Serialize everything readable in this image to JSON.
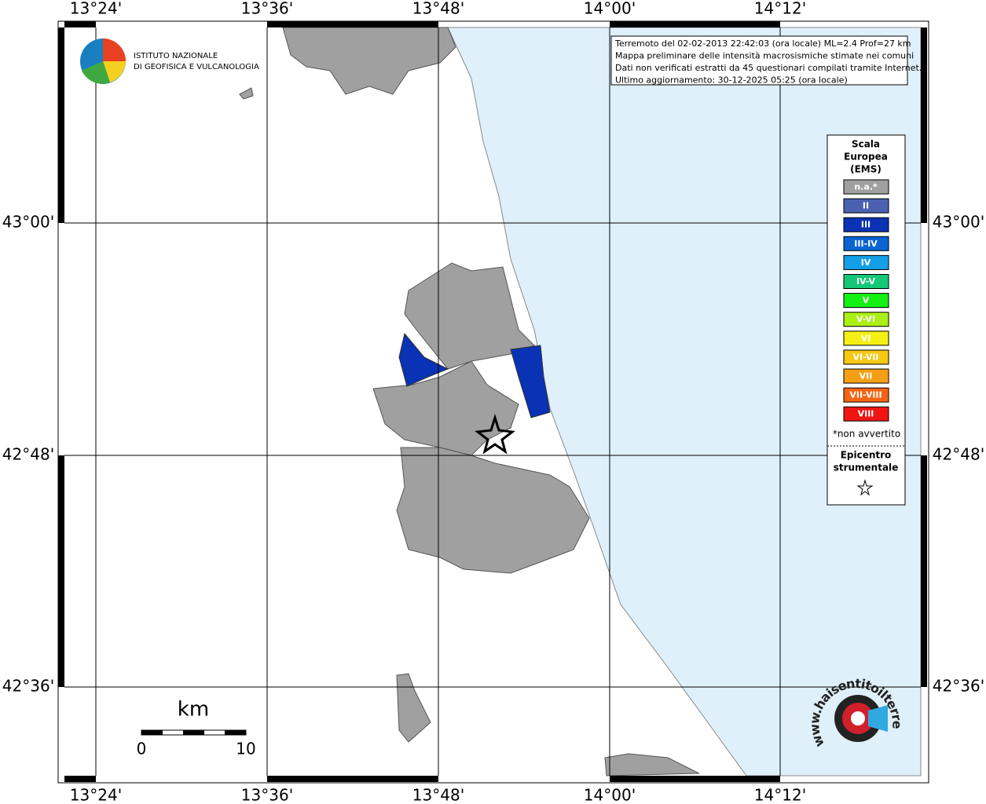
{
  "header": {
    "institute_lines": [
      "ISTITUTO NAZIONALE",
      "DI GEOFISICA E VULCANOLOGIA"
    ]
  },
  "info_box": {
    "lines": [
      "Terremoto del 02-02-2013 22:42:03 (ora locale) ML=2.4 Prof=27 km",
      "Mappa preliminare delle intensità macrosismiche stimate nei comuni",
      "Dati non verificati estratti da 45 questionari compilati tramite Internet.",
      "Ultimo aggiornamento: 30-12-2025 05:25 (ora locale)"
    ]
  },
  "map": {
    "lon_labels": [
      "13°24'",
      "13°36'",
      "13°48'",
      "14°00'",
      "14°12'"
    ],
    "lat_labels": [
      "43°00'",
      "42°48'",
      "42°36'"
    ]
  },
  "legend": {
    "title_lines": [
      "Scala",
      "Europea",
      "(EMS)"
    ],
    "items": [
      {
        "label": "n.a.*",
        "color": "#a0a0a0"
      },
      {
        "label": "II",
        "color": "#4a62b0"
      },
      {
        "label": "III",
        "color": "#0a32b4"
      },
      {
        "label": "III-IV",
        "color": "#0a64d2"
      },
      {
        "label": "IV",
        "color": "#14a0e6"
      },
      {
        "label": "IV-V",
        "color": "#14c878"
      },
      {
        "label": "V",
        "color": "#14f014"
      },
      {
        "label": "V-VI",
        "color": "#aaf014"
      },
      {
        "label": "VI",
        "color": "#f5f014"
      },
      {
        "label": "VI-VII",
        "color": "#f5c814"
      },
      {
        "label": "VII",
        "color": "#f5a014"
      },
      {
        "label": "VII-VIII",
        "color": "#f56414"
      },
      {
        "label": "VIII",
        "color": "#f01414"
      }
    ],
    "note": "*non avvertito",
    "epicenter_lines": [
      "Epicentro",
      "strumentale"
    ]
  },
  "scale_bar": {
    "unit": "km",
    "labels": [
      "0",
      "10"
    ]
  },
  "footer_logo": {
    "text": "www.haisentitoilterremoto.it"
  }
}
